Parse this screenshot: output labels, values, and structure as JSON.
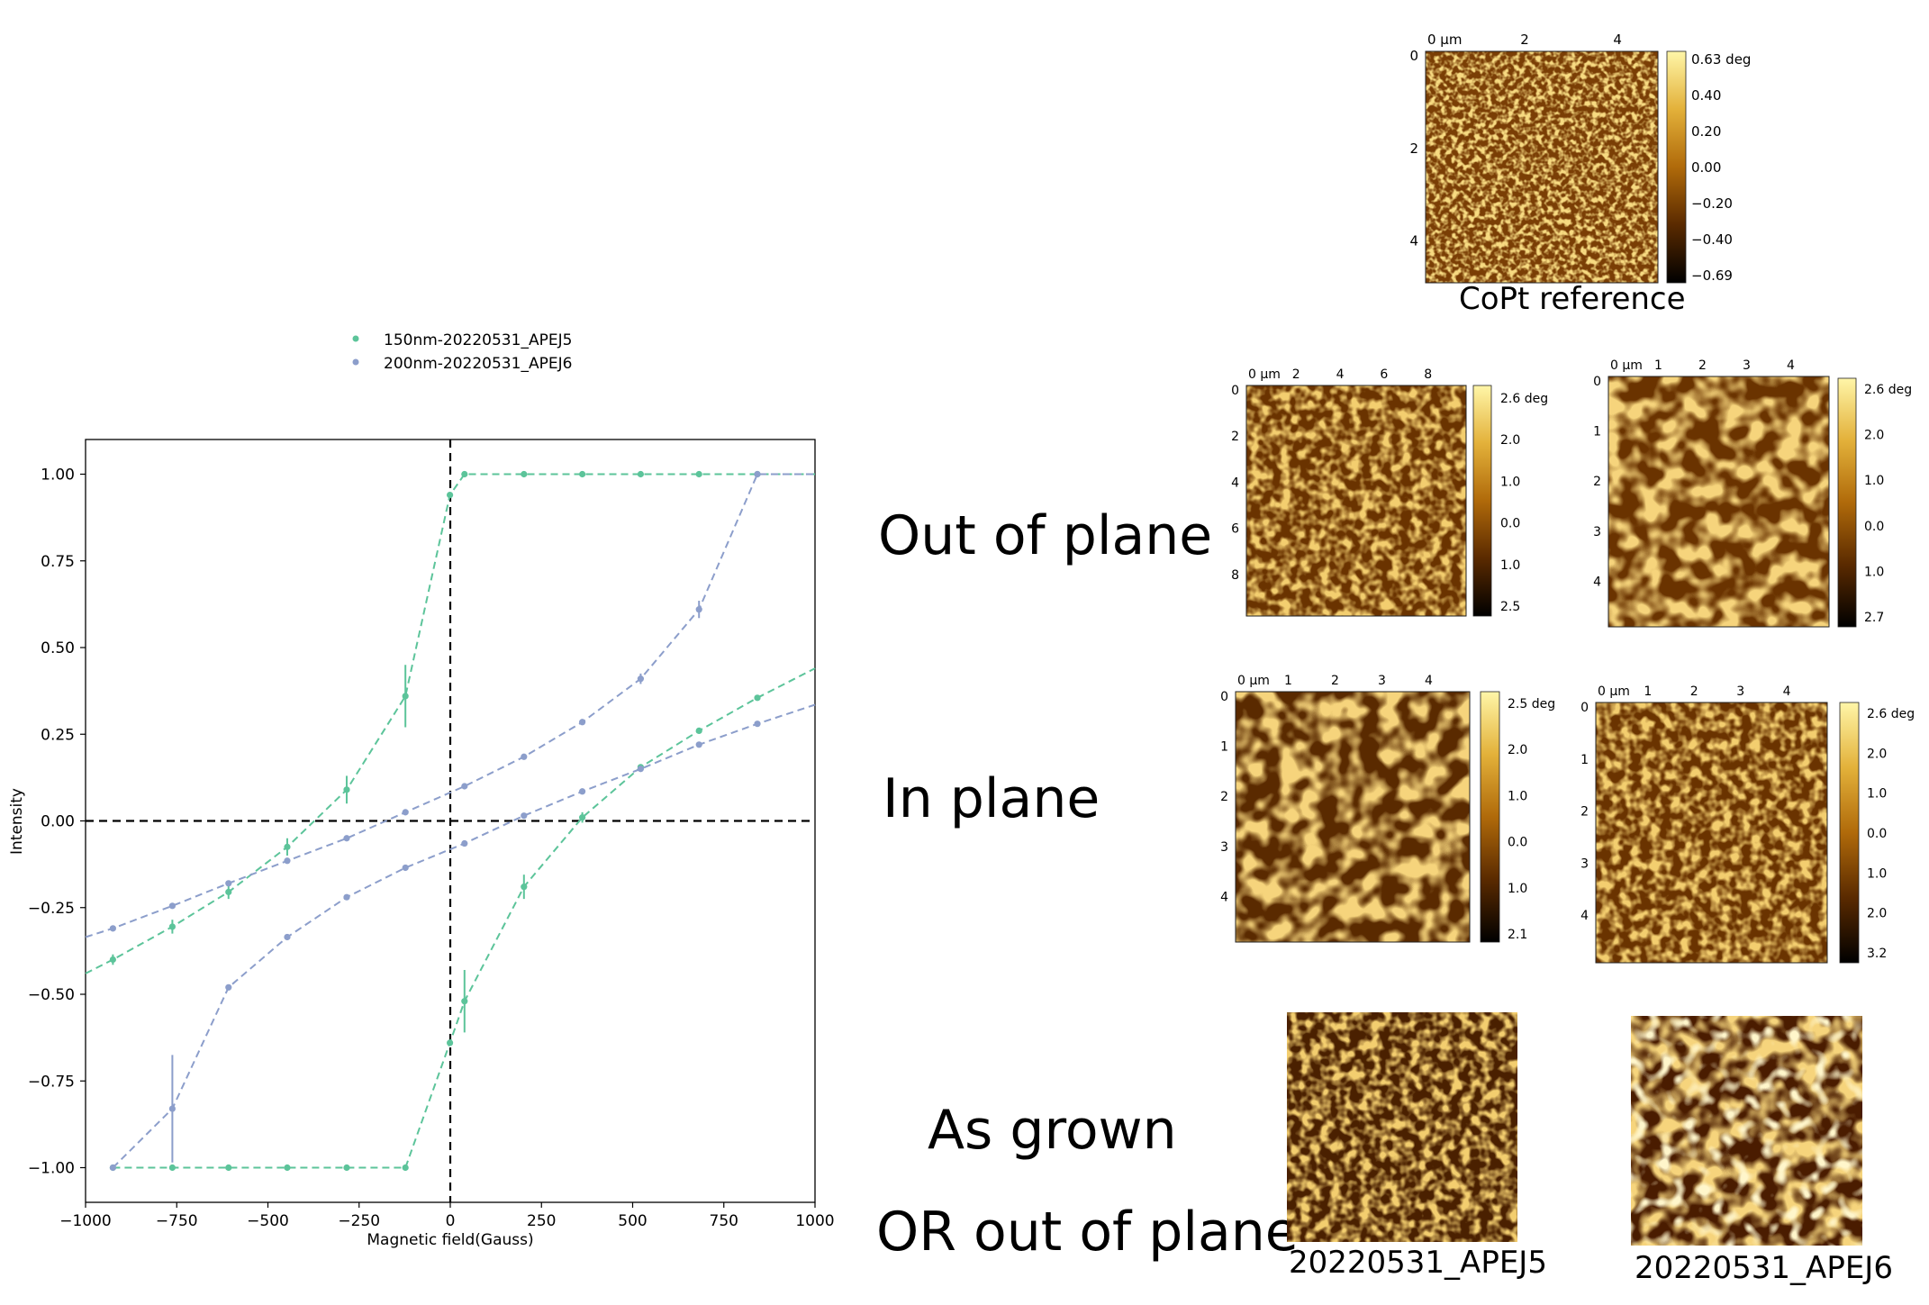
{
  "chart_data": {
    "type": "scatter",
    "xlabel": "Magnetic field(Gauss)",
    "ylabel": "Intensity",
    "xlim": [
      -1000,
      1000
    ],
    "ylim": [
      -1.1,
      1.1
    ],
    "xticks": [
      "−1000",
      "−750",
      "−500",
      "−250",
      "0",
      "250",
      "500",
      "750",
      "1000"
    ],
    "yticks": [
      "−1.00",
      "−0.75",
      "−0.50",
      "−0.25",
      "0.00",
      "0.25",
      "0.50",
      "0.75",
      "1.00"
    ],
    "xtick_values": [
      -1000,
      -750,
      -500,
      -250,
      0,
      250,
      500,
      750,
      1000
    ],
    "ytick_values": [
      -1,
      -0.75,
      -0.5,
      -0.25,
      0,
      0.25,
      0.5,
      0.75,
      1
    ],
    "reference_lines": {
      "x": 0,
      "y": 0
    },
    "legend_position": "above plot, left",
    "series": [
      {
        "name": "150nm-20220531_APEJ5",
        "color": "#5cc49a",
        "line_style": "dashed",
        "branches": [
          {
            "x": [
              -1000,
              -925,
              -762,
              -608,
              -447,
              -284,
              -123,
              -1,
              39,
              202,
              362,
              522,
              682,
              842,
              1000
            ],
            "y": [
              -0.44,
              -0.4,
              -0.305,
              -0.205,
              -0.075,
              0.09,
              0.36,
              0.94,
              1.0,
              1.0,
              1.0,
              1.0,
              1.0,
              1.0,
              1.0
            ]
          },
          {
            "x": [
              -925,
              -762,
              -608,
              -447,
              -284,
              -123,
              -1,
              39,
              202,
              362,
              522,
              682,
              842,
              1000
            ],
            "y": [
              -1.0,
              -1.0,
              -1.0,
              -1.0,
              -1.0,
              -1.0,
              -0.64,
              -0.52,
              -0.19,
              0.01,
              0.155,
              0.26,
              0.355,
              0.44
            ]
          }
        ],
        "error_bars": [
          {
            "x": -123,
            "y": 0.36,
            "err": 0.09
          },
          {
            "x": -284,
            "y": 0.09,
            "err": 0.04
          },
          {
            "x": -447,
            "y": -0.075,
            "err": 0.025
          },
          {
            "x": -762,
            "y": -0.305,
            "err": 0.02
          },
          {
            "x": -925,
            "y": -0.4,
            "err": 0.015
          },
          {
            "x": -608,
            "y": -0.205,
            "err": 0.02
          },
          {
            "x": 39,
            "y": -0.52,
            "err": 0.09
          },
          {
            "x": 202,
            "y": -0.19,
            "err": 0.035
          },
          {
            "x": 362,
            "y": 0.01,
            "err": 0.015
          }
        ]
      },
      {
        "name": "200nm-20220531_APEJ6",
        "color": "#8c9ecb",
        "line_style": "dashed",
        "branches": [
          {
            "x": [
              -1000,
              -925,
              -762,
              -608,
              -447,
              -284,
              -123,
              39,
              202,
              362,
              522,
              682,
              842,
              1000
            ],
            "y": [
              -0.335,
              -0.31,
              -0.245,
              -0.18,
              -0.115,
              -0.05,
              0.025,
              0.1,
              0.185,
              0.285,
              0.41,
              0.61,
              1.0,
              1.0
            ]
          },
          {
            "x": [
              -925,
              -762,
              -608,
              -447,
              -284,
              -123,
              39,
              202,
              362,
              522,
              682,
              842,
              1000
            ],
            "y": [
              -1.0,
              -0.83,
              -0.48,
              -0.335,
              -0.22,
              -0.135,
              -0.065,
              0.015,
              0.085,
              0.15,
              0.22,
              0.28,
              0.335
            ]
          }
        ],
        "error_bars": [
          {
            "x": -762,
            "y": -0.83,
            "err": 0.155
          },
          {
            "x": 682,
            "y": 0.61,
            "err": 0.025
          },
          {
            "x": 522,
            "y": 0.41,
            "err": 0.015
          }
        ]
      }
    ]
  },
  "row_labels": {
    "out_of_plane": "Out of plane",
    "in_plane": "In plane",
    "as_grown": "As grown",
    "or_out_of_plane": "OR out of plane"
  },
  "reference_panel": {
    "caption": "CoPt reference",
    "x_ticks": [
      "0 µm",
      "2",
      "4"
    ],
    "y_ticks": [
      "0",
      "2",
      "4"
    ],
    "colorbar": [
      "0.63 deg",
      "0.40",
      "0.20",
      "0.00",
      "−0.20",
      "−0.40",
      "−0.69"
    ]
  },
  "oop_left": {
    "x_ticks": [
      "0 µm",
      "2",
      "4",
      "6",
      "8"
    ],
    "y_ticks": [
      "0",
      "2",
      "4",
      "6",
      "8"
    ],
    "colorbar": [
      "2.6 deg",
      "2.0",
      "1.0",
      "0.0",
      "1.0",
      "2.5"
    ]
  },
  "oop_right": {
    "x_ticks": [
      "0 µm",
      "1",
      "2",
      "3",
      "4"
    ],
    "y_ticks": [
      "0",
      "1",
      "2",
      "3",
      "4"
    ],
    "colorbar": [
      "2.6 deg",
      "2.0",
      "1.0",
      "0.0",
      "1.0",
      "2.7"
    ]
  },
  "ip_left": {
    "x_ticks": [
      "0 µm",
      "1",
      "2",
      "3",
      "4"
    ],
    "y_ticks": [
      "0",
      "1",
      "2",
      "3",
      "4"
    ],
    "colorbar": [
      "2.5 deg",
      "2.0",
      "1.0",
      "0.0",
      "1.0",
      "2.1"
    ]
  },
  "ip_right": {
    "x_ticks": [
      "0 µm",
      "1",
      "2",
      "3",
      "4"
    ],
    "y_ticks": [
      "0",
      "1",
      "2",
      "3",
      "4"
    ],
    "colorbar": [
      "2.6 deg",
      "2.0",
      "1.0",
      "0.0",
      "1.0",
      "2.0",
      "3.2"
    ]
  },
  "as_grown": {
    "left_caption": "20220531_APEJ5",
    "right_caption": "20220531_APEJ6"
  }
}
